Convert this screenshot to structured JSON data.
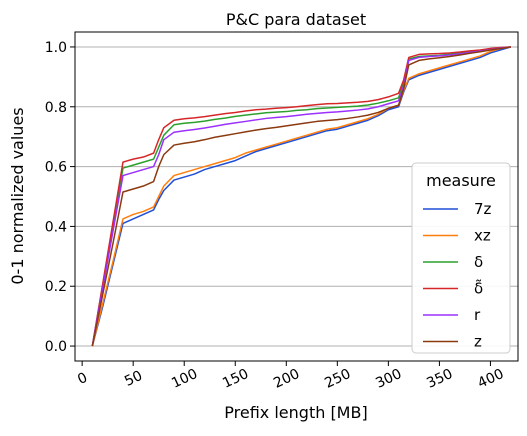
{
  "chart_data": {
    "type": "line",
    "title": "P&C para dataset",
    "xlabel": "Prefix length [MB]",
    "ylabel": "0-1 normalized values",
    "xlim": [
      -7,
      427
    ],
    "ylim": [
      -0.05,
      1.05
    ],
    "xticks": [
      0,
      50,
      100,
      150,
      200,
      250,
      300,
      350,
      400
    ],
    "xtick_labels": [
      "0",
      "50",
      "100",
      "150",
      "200",
      "250",
      "300",
      "350",
      "400"
    ],
    "yticks": [
      0.0,
      0.2,
      0.4,
      0.6,
      0.8,
      1.0
    ],
    "ytick_labels": [
      "0.0",
      "0.2",
      "0.4",
      "0.6",
      "0.8",
      "1.0"
    ],
    "grid": "horizontal",
    "legend_title": "measure",
    "legend_position": "lower-right",
    "x": [
      10,
      20,
      30,
      40,
      50,
      60,
      70,
      75,
      80,
      90,
      100,
      110,
      120,
      130,
      140,
      150,
      160,
      170,
      180,
      190,
      200,
      210,
      220,
      230,
      240,
      250,
      260,
      270,
      280,
      290,
      300,
      310,
      315,
      320,
      330,
      340,
      350,
      360,
      370,
      380,
      390,
      400,
      410,
      420
    ],
    "series": [
      {
        "name": "7z",
        "label": "7z",
        "color": "#1f4fd6",
        "values": [
          0.0,
          0.13,
          0.27,
          0.41,
          0.425,
          0.44,
          0.455,
          0.49,
          0.52,
          0.555,
          0.565,
          0.575,
          0.59,
          0.6,
          0.61,
          0.62,
          0.635,
          0.65,
          0.66,
          0.67,
          0.68,
          0.69,
          0.7,
          0.71,
          0.72,
          0.725,
          0.735,
          0.745,
          0.755,
          0.77,
          0.79,
          0.8,
          0.85,
          0.89,
          0.905,
          0.915,
          0.925,
          0.935,
          0.945,
          0.955,
          0.965,
          0.98,
          0.99,
          1.0
        ]
      },
      {
        "name": "xz",
        "label": "xz",
        "color": "#ff7f0e",
        "values": [
          0.0,
          0.14,
          0.28,
          0.425,
          0.44,
          0.45,
          0.465,
          0.5,
          0.535,
          0.57,
          0.58,
          0.59,
          0.6,
          0.61,
          0.62,
          0.63,
          0.645,
          0.655,
          0.665,
          0.675,
          0.685,
          0.695,
          0.705,
          0.715,
          0.725,
          0.73,
          0.74,
          0.75,
          0.76,
          0.775,
          0.795,
          0.805,
          0.855,
          0.895,
          0.91,
          0.92,
          0.93,
          0.94,
          0.95,
          0.96,
          0.97,
          0.985,
          0.995,
          1.0
        ]
      },
      {
        "name": "delta",
        "label": "δ",
        "color": "#2ca02c",
        "values": [
          0.0,
          0.2,
          0.4,
          0.595,
          0.605,
          0.615,
          0.625,
          0.665,
          0.705,
          0.74,
          0.745,
          0.748,
          0.752,
          0.758,
          0.762,
          0.768,
          0.772,
          0.776,
          0.78,
          0.782,
          0.784,
          0.788,
          0.79,
          0.794,
          0.796,
          0.798,
          0.8,
          0.802,
          0.806,
          0.812,
          0.82,
          0.83,
          0.88,
          0.96,
          0.968,
          0.97,
          0.972,
          0.976,
          0.98,
          0.984,
          0.988,
          0.993,
          0.997,
          1.0
        ]
      },
      {
        "name": "delta-tilde",
        "label": "δ̃",
        "color": "#d62728",
        "values": [
          0.0,
          0.205,
          0.41,
          0.615,
          0.625,
          0.632,
          0.645,
          0.69,
          0.73,
          0.755,
          0.76,
          0.763,
          0.767,
          0.772,
          0.777,
          0.781,
          0.786,
          0.79,
          0.792,
          0.795,
          0.797,
          0.8,
          0.804,
          0.807,
          0.81,
          0.811,
          0.813,
          0.815,
          0.818,
          0.824,
          0.833,
          0.845,
          0.89,
          0.965,
          0.975,
          0.977,
          0.978,
          0.98,
          0.983,
          0.987,
          0.99,
          0.995,
          0.998,
          1.0
        ]
      },
      {
        "name": "r",
        "label": "r",
        "color": "#9b30ff",
        "values": [
          0.0,
          0.19,
          0.38,
          0.57,
          0.58,
          0.59,
          0.6,
          0.64,
          0.69,
          0.715,
          0.72,
          0.724,
          0.729,
          0.735,
          0.741,
          0.746,
          0.751,
          0.756,
          0.761,
          0.764,
          0.767,
          0.771,
          0.775,
          0.778,
          0.781,
          0.783,
          0.786,
          0.789,
          0.793,
          0.8,
          0.81,
          0.82,
          0.87,
          0.955,
          0.965,
          0.968,
          0.97,
          0.973,
          0.977,
          0.982,
          0.986,
          0.991,
          0.996,
          1.0
        ]
      },
      {
        "name": "z",
        "label": "z",
        "color": "#8b3a0f",
        "values": [
          0.0,
          0.17,
          0.34,
          0.515,
          0.525,
          0.535,
          0.55,
          0.6,
          0.64,
          0.672,
          0.678,
          0.683,
          0.69,
          0.698,
          0.704,
          0.71,
          0.716,
          0.722,
          0.727,
          0.731,
          0.736,
          0.741,
          0.746,
          0.751,
          0.754,
          0.757,
          0.761,
          0.766,
          0.772,
          0.781,
          0.795,
          0.805,
          0.86,
          0.94,
          0.955,
          0.96,
          0.964,
          0.968,
          0.973,
          0.979,
          0.984,
          0.99,
          0.995,
          1.0
        ]
      }
    ]
  }
}
